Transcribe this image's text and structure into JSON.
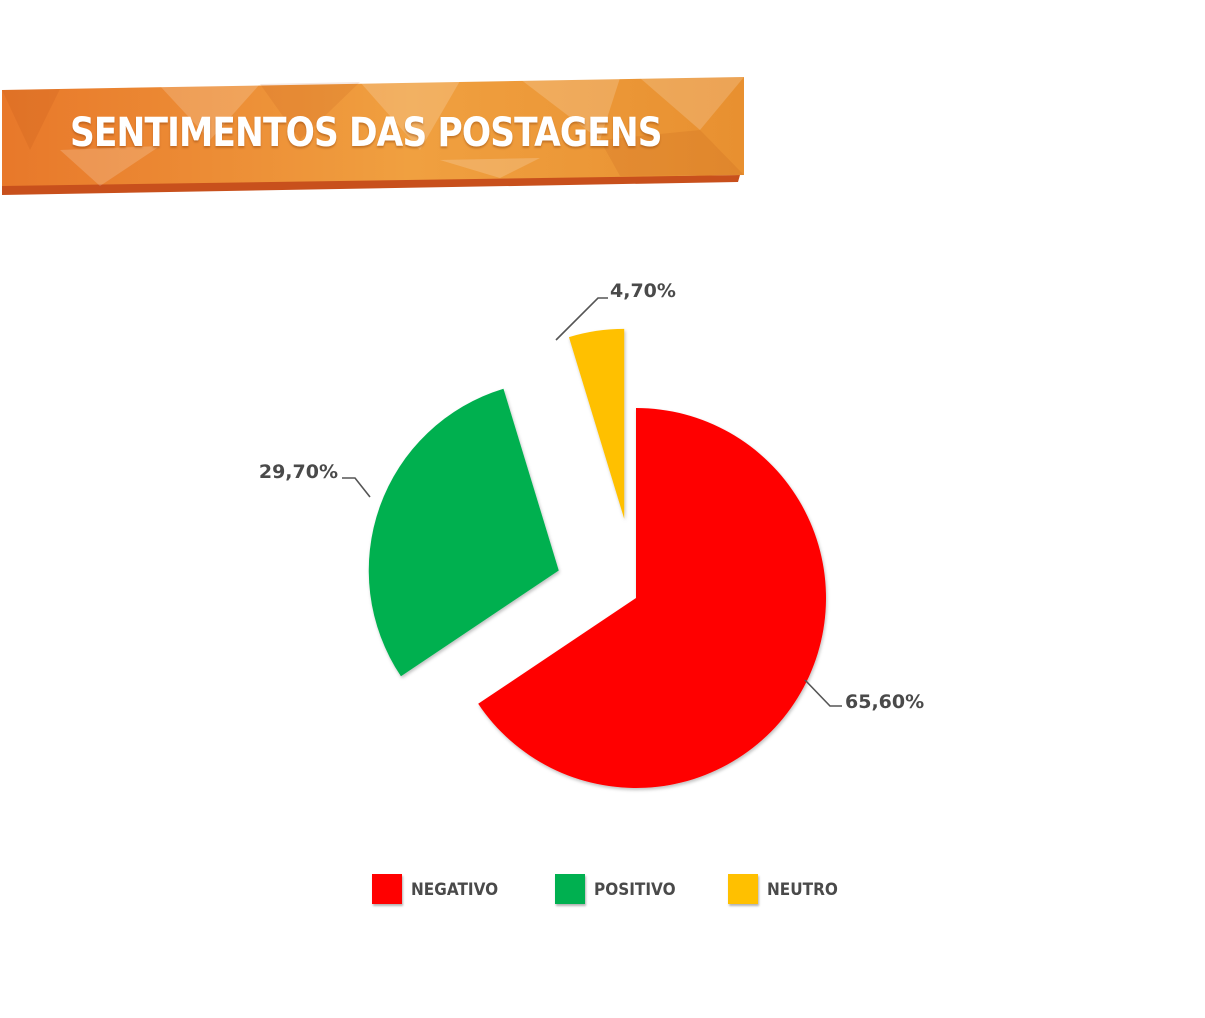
{
  "banner": {
    "title": "SENTIMENTOS DAS POSTAGENS",
    "color_light": "#f0a544",
    "color_dark": "#e87828",
    "shadow_color": "#c8501c"
  },
  "chart_data": {
    "type": "pie",
    "title": "SENTIMENTOS DAS POSTAGENS",
    "slices": [
      {
        "label": "NEGATIVO",
        "value": 65.6,
        "display": "65,60%",
        "color": "#ff0000",
        "exploded": false
      },
      {
        "label": "POSITIVO",
        "value": 29.7,
        "display": "29,70%",
        "color": "#00b050",
        "exploded": true
      },
      {
        "label": "NEUTRO",
        "value": 4.7,
        "display": "4,70%",
        "color": "#ffc000",
        "exploded": true
      }
    ],
    "legend_position": "bottom"
  }
}
